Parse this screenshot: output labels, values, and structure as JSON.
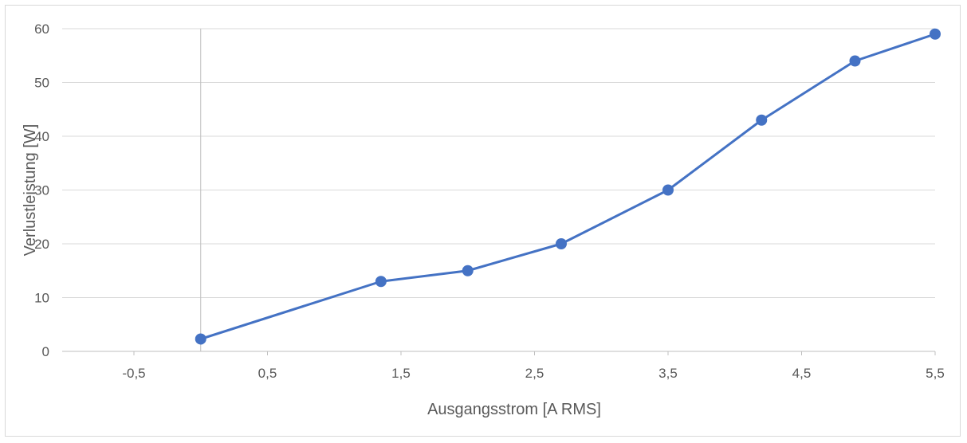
{
  "chart_data": {
    "type": "scatter",
    "title": "",
    "xlabel": "Ausgangsstrom [A RMS]",
    "ylabel": "Verlustleistung [W]",
    "xlim": [
      -0.5,
      5.5
    ],
    "ylim": [
      0,
      60
    ],
    "x_ticks": [
      -0.5,
      0.5,
      1.5,
      2.5,
      3.5,
      4.5,
      5.5
    ],
    "x_tick_labels": [
      "-0,5",
      "0,5",
      "1,5",
      "2,5",
      "3,5",
      "4,5",
      "5,5"
    ],
    "y_ticks": [
      0,
      10,
      20,
      30,
      40,
      50,
      60
    ],
    "y_tick_labels": [
      "0",
      "10",
      "20",
      "30",
      "40",
      "50",
      "60"
    ],
    "grid": "horizontal",
    "legend": "none",
    "series": [
      {
        "color": "#4472c4",
        "marker": "circle",
        "line": true,
        "points": [
          {
            "x": 0.0,
            "y": 2.3
          },
          {
            "x": 1.35,
            "y": 13
          },
          {
            "x": 2.0,
            "y": 15
          },
          {
            "x": 2.7,
            "y": 20
          },
          {
            "x": 3.5,
            "y": 30
          },
          {
            "x": 4.2,
            "y": 43
          },
          {
            "x": 4.9,
            "y": 54
          },
          {
            "x": 5.5,
            "y": 59
          }
        ]
      }
    ],
    "colors": {
      "grid": "#d9d9d9",
      "axis": "#bfbfbf",
      "text": "#595959",
      "series": "#4472c4"
    }
  }
}
